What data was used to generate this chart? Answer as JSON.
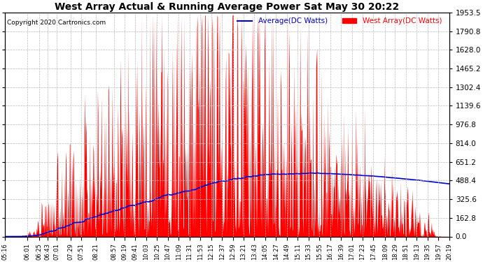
{
  "title": "West Array Actual & Running Average Power Sat May 30 20:22",
  "copyright": "Copyright 2020 Cartronics.com",
  "legend_avg": "Average(DC Watts)",
  "legend_west": "West Array(DC Watts)",
  "ymax": 1953.5,
  "ymin": 0.0,
  "yticks": [
    0.0,
    162.8,
    325.6,
    488.4,
    651.2,
    814.0,
    976.8,
    1139.6,
    1302.4,
    1465.2,
    1628.0,
    1790.8,
    1953.5
  ],
  "xtick_labels": [
    "05:16",
    "06:01",
    "06:25",
    "06:43",
    "07:01",
    "07:29",
    "07:51",
    "08:21",
    "08:57",
    "09:19",
    "09:41",
    "10:03",
    "10:25",
    "10:47",
    "11:09",
    "11:31",
    "11:53",
    "12:15",
    "12:37",
    "12:59",
    "13:21",
    "13:43",
    "14:05",
    "14:27",
    "14:49",
    "15:11",
    "15:33",
    "15:55",
    "16:17",
    "16:39",
    "17:01",
    "17:23",
    "17:45",
    "18:09",
    "18:29",
    "18:51",
    "19:13",
    "19:35",
    "19:57",
    "20:19"
  ],
  "background_color": "#ffffff",
  "plot_bg_color": "#ffffff",
  "grid_color": "#bbbbbb",
  "bar_color": "#ff0000",
  "line_color": "#0000cc",
  "title_color": "#000000",
  "copyright_color": "#000000",
  "legend_avg_color": "#0000cc",
  "legend_west_color": "#ff0000"
}
